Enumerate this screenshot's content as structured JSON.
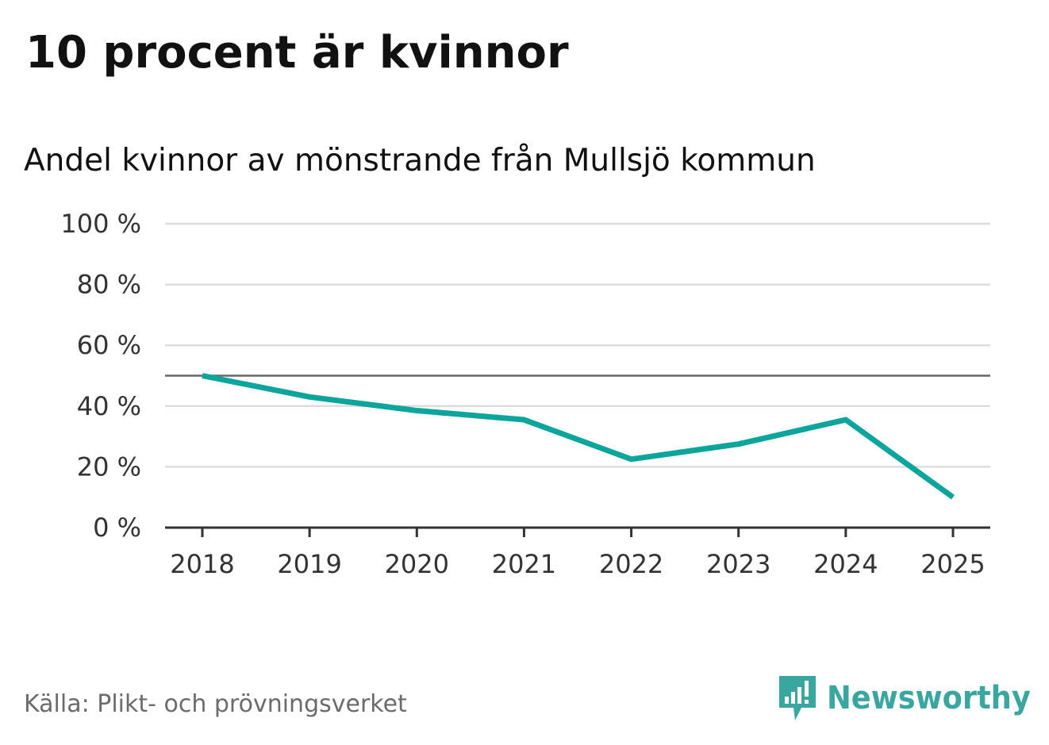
{
  "header": {
    "title": "10 procent är kvinnor",
    "subtitle": "Andel kvinnor av mönstrande från Mullsjö kommun"
  },
  "footer": {
    "source": "Källa: Plikt- och prövningsverket",
    "brand": "Newsworthy"
  },
  "colors": {
    "line": "#0ca59c",
    "grid": "#dddddd",
    "reference": "#666666",
    "axis": "#333333",
    "brand": "#3aa6a0"
  },
  "chart_data": {
    "type": "line",
    "categories": [
      "2018",
      "2019",
      "2020",
      "2021",
      "2022",
      "2023",
      "2024",
      "2025"
    ],
    "series": [
      {
        "values": [
          50,
          43,
          38.5,
          35.5,
          22.5,
          27.5,
          35.5,
          10
        ]
      }
    ],
    "reference_line": 50,
    "ylim": [
      0,
      100
    ],
    "yticks": [
      0,
      20,
      40,
      60,
      80,
      100
    ],
    "ytick_labels": [
      "0 %",
      "20 %",
      "40 %",
      "60 %",
      "80 %",
      "100 %"
    ],
    "grid": true,
    "legend": "none"
  }
}
